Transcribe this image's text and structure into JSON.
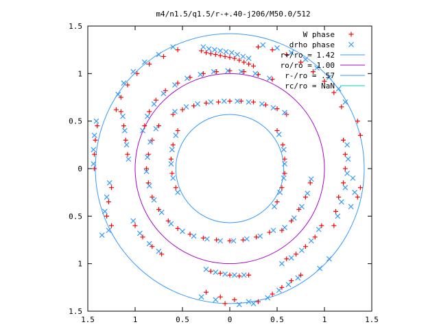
{
  "chart_data": {
    "type": "scatter",
    "title": "m4/n1.5/q1.5/r-+.40-j206/M50.0/512",
    "xlabel": "",
    "ylabel": "",
    "xlim": [
      -1.5,
      1.5
    ],
    "ylim": [
      -1.5,
      1.5
    ],
    "x_ticks": [
      -1.5,
      -1,
      -0.5,
      0,
      0.5,
      1,
      1.5
    ],
    "x_tick_labels": [
      "1.5",
      "1",
      "0.5",
      "0",
      "0.5",
      "1",
      "1.5"
    ],
    "y_ticks": [
      1.5,
      1,
      0.5,
      0,
      -0.5,
      -1,
      -1.5
    ],
    "y_tick_labels": [
      "1.5",
      "1",
      "0.5",
      "0",
      "0.5",
      "1",
      "1.5"
    ],
    "grid": false,
    "legend_position": "top-right",
    "colors": {
      "w_phase": "#ff0000",
      "drho_phase": "#3399ff",
      "r_plus": "#3399ff",
      "r_o": "#aa00cc",
      "r_minus": "#3399ff",
      "r_c": "#00cccc"
    },
    "series": [
      {
        "name": "W phase",
        "marker": "+",
        "points": [
          [
            -0.3,
            1.24
          ],
          [
            -0.25,
            1.22
          ],
          [
            -0.2,
            1.21
          ],
          [
            -0.15,
            1.2
          ],
          [
            -0.1,
            1.19
          ],
          [
            -0.05,
            1.18
          ],
          [
            0.0,
            1.17
          ],
          [
            0.05,
            1.16
          ],
          [
            0.1,
            1.14
          ],
          [
            0.15,
            1.12
          ],
          [
            0.2,
            1.1
          ],
          [
            0.25,
            1.08
          ],
          [
            0.3,
            1.28
          ],
          [
            0.45,
            1.25
          ],
          [
            0.6,
            1.2
          ],
          [
            0.75,
            1.12
          ],
          [
            0.88,
            1.02
          ],
          [
            1.0,
            0.92
          ],
          [
            1.1,
            0.8
          ],
          [
            1.18,
            0.65
          ],
          [
            -0.55,
            1.25
          ],
          [
            -0.7,
            1.18
          ],
          [
            -0.85,
            1.1
          ],
          [
            -0.98,
            1.0
          ],
          [
            -1.08,
            0.88
          ],
          [
            -1.15,
            0.75
          ],
          [
            -0.6,
            0.57
          ],
          [
            -0.5,
            0.62
          ],
          [
            -0.38,
            0.66
          ],
          [
            -0.25,
            0.69
          ],
          [
            -0.12,
            0.7
          ],
          [
            0.0,
            0.71
          ],
          [
            0.12,
            0.71
          ],
          [
            0.25,
            0.7
          ],
          [
            0.38,
            0.67
          ],
          [
            0.5,
            0.63
          ],
          [
            0.6,
            0.57
          ],
          [
            -0.75,
            0.45
          ],
          [
            -0.82,
            0.3
          ],
          [
            -0.86,
            0.15
          ],
          [
            -0.88,
            0.0
          ],
          [
            -0.86,
            -0.15
          ],
          [
            -0.82,
            -0.3
          ],
          [
            -0.75,
            -0.43
          ],
          [
            -0.65,
            -0.55
          ],
          [
            -0.55,
            -0.63
          ],
          [
            -0.42,
            -0.69
          ],
          [
            -0.28,
            -0.73
          ],
          [
            -0.14,
            -0.75
          ],
          [
            0.0,
            -0.76
          ],
          [
            0.14,
            -0.75
          ],
          [
            0.28,
            -0.72
          ],
          [
            0.42,
            -0.67
          ],
          [
            0.5,
            0.4
          ],
          [
            0.56,
            0.25
          ],
          [
            0.58,
            0.1
          ],
          [
            0.58,
            -0.05
          ],
          [
            0.55,
            -0.2
          ],
          [
            0.5,
            -0.35
          ],
          [
            -0.55,
            0.4
          ],
          [
            -0.6,
            0.25
          ],
          [
            -0.62,
            0.1
          ],
          [
            -0.61,
            -0.05
          ],
          [
            -0.57,
            -0.2
          ],
          [
            0.55,
            -0.65
          ],
          [
            0.65,
            -0.55
          ],
          [
            0.73,
            -0.43
          ],
          [
            0.8,
            -0.3
          ],
          [
            0.85,
            -0.15
          ],
          [
            1.2,
            0.3
          ],
          [
            1.22,
            0.15
          ],
          [
            1.22,
            0.0
          ],
          [
            1.2,
            -0.15
          ],
          [
            1.15,
            -0.3
          ],
          [
            1.12,
            -0.45
          ],
          [
            0.6,
            -0.95
          ],
          [
            0.7,
            -0.9
          ],
          [
            0.8,
            -0.82
          ],
          [
            0.9,
            -0.72
          ],
          [
            0.97,
            -0.6
          ],
          [
            0.3,
            -1.4
          ],
          [
            0.45,
            -1.32
          ],
          [
            0.55,
            -1.25
          ],
          [
            0.65,
            -1.18
          ],
          [
            0.75,
            -1.12
          ],
          [
            -0.2,
            -1.08
          ],
          [
            -0.1,
            -1.1
          ],
          [
            0.0,
            -1.12
          ],
          [
            0.1,
            -1.13
          ],
          [
            0.2,
            -1.12
          ],
          [
            -1.0,
            -0.6
          ],
          [
            -0.92,
            -0.72
          ],
          [
            -0.82,
            -0.82
          ],
          [
            -0.72,
            -0.9
          ],
          [
            -1.25,
            -0.2
          ],
          [
            -1.28,
            -0.35
          ],
          [
            -1.3,
            -0.5
          ],
          [
            -1.25,
            -0.6
          ],
          [
            -1.4,
            0.45
          ],
          [
            -1.42,
            0.3
          ],
          [
            -1.43,
            0.15
          ],
          [
            -1.43,
            0.0
          ],
          [
            -1.15,
            0.6
          ],
          [
            -1.12,
            0.45
          ],
          [
            -1.1,
            0.3
          ],
          [
            -1.08,
            0.15
          ],
          [
            1.35,
            0.5
          ],
          [
            1.38,
            0.35
          ],
          [
            1.38,
            -0.2
          ],
          [
            1.35,
            -0.3
          ],
          [
            1.1,
            -0.6
          ],
          [
            -1.2,
            0.62
          ],
          [
            -0.1,
            -1.35
          ],
          [
            -0.25,
            -1.3
          ],
          [
            -0.05,
            -1.42
          ],
          [
            0.05,
            -1.38
          ],
          [
            -0.9,
            0.45
          ],
          [
            -0.85,
            0.6
          ],
          [
            -0.78,
            0.72
          ],
          [
            -0.68,
            0.82
          ],
          [
            -0.55,
            0.9
          ],
          [
            -0.42,
            0.96
          ],
          [
            -0.28,
            1.0
          ],
          [
            -0.14,
            1.02
          ],
          [
            0.0,
            1.03
          ],
          [
            0.15,
            1.02
          ],
          [
            0.3,
            0.99
          ],
          [
            0.45,
            0.94
          ]
        ]
      },
      {
        "name": "drho phase",
        "marker": "x",
        "points": [
          [
            -0.28,
            1.28
          ],
          [
            -0.22,
            1.26
          ],
          [
            -0.16,
            1.25
          ],
          [
            -0.1,
            1.24
          ],
          [
            -0.04,
            1.23
          ],
          [
            0.02,
            1.22
          ],
          [
            0.08,
            1.2
          ],
          [
            0.14,
            1.18
          ],
          [
            0.2,
            1.16
          ],
          [
            0.35,
            1.3
          ],
          [
            0.5,
            1.27
          ],
          [
            0.65,
            1.22
          ],
          [
            0.8,
            1.15
          ],
          [
            0.92,
            1.06
          ],
          [
            1.05,
            0.96
          ],
          [
            1.15,
            0.84
          ],
          [
            1.22,
            0.7
          ],
          [
            -0.6,
            1.28
          ],
          [
            -0.75,
            1.2
          ],
          [
            -0.9,
            1.12
          ],
          [
            -1.02,
            1.02
          ],
          [
            -1.12,
            0.9
          ],
          [
            -1.18,
            0.78
          ],
          [
            -0.58,
            0.6
          ],
          [
            -0.46,
            0.65
          ],
          [
            -0.34,
            0.68
          ],
          [
            -0.2,
            0.7
          ],
          [
            -0.06,
            0.71
          ],
          [
            0.08,
            0.71
          ],
          [
            0.2,
            0.7
          ],
          [
            0.34,
            0.68
          ],
          [
            0.46,
            0.64
          ],
          [
            0.58,
            0.59
          ],
          [
            -0.78,
            0.42
          ],
          [
            -0.84,
            0.28
          ],
          [
            -0.87,
            0.12
          ],
          [
            -0.88,
            -0.03
          ],
          [
            -0.85,
            -0.18
          ],
          [
            -0.8,
            -0.33
          ],
          [
            -0.72,
            -0.46
          ],
          [
            -0.62,
            -0.58
          ],
          [
            -0.5,
            -0.66
          ],
          [
            -0.38,
            -0.71
          ],
          [
            -0.24,
            -0.74
          ],
          [
            -0.1,
            -0.76
          ],
          [
            0.04,
            -0.76
          ],
          [
            0.18,
            -0.74
          ],
          [
            0.32,
            -0.71
          ],
          [
            0.46,
            -0.65
          ],
          [
            0.52,
            0.36
          ],
          [
            0.57,
            0.2
          ],
          [
            0.58,
            0.05
          ],
          [
            0.57,
            -0.1
          ],
          [
            0.53,
            -0.25
          ],
          [
            0.47,
            -0.4
          ],
          [
            -0.57,
            0.35
          ],
          [
            -0.61,
            0.2
          ],
          [
            -0.62,
            0.05
          ],
          [
            -0.6,
            -0.1
          ],
          [
            -0.55,
            -0.25
          ],
          [
            0.58,
            -0.62
          ],
          [
            0.68,
            -0.52
          ],
          [
            0.76,
            -0.4
          ],
          [
            0.82,
            -0.26
          ],
          [
            0.86,
            -0.11
          ],
          [
            1.24,
            0.25
          ],
          [
            1.25,
            0.1
          ],
          [
            1.24,
            -0.05
          ],
          [
            1.22,
            -0.2
          ],
          [
            1.18,
            -0.35
          ],
          [
            1.14,
            -0.5
          ],
          [
            0.55,
            -1.0
          ],
          [
            0.65,
            -0.94
          ],
          [
            0.76,
            -0.86
          ],
          [
            0.86,
            -0.76
          ],
          [
            0.94,
            -0.64
          ],
          [
            0.25,
            -1.42
          ],
          [
            0.4,
            -1.36
          ],
          [
            0.52,
            -1.28
          ],
          [
            0.62,
            -1.22
          ],
          [
            0.72,
            -1.15
          ],
          [
            -0.25,
            -1.06
          ],
          [
            -0.15,
            -1.09
          ],
          [
            -0.05,
            -1.11
          ],
          [
            0.05,
            -1.12
          ],
          [
            0.15,
            -1.12
          ],
          [
            -1.02,
            -0.55
          ],
          [
            -0.95,
            -0.68
          ],
          [
            -0.85,
            -0.79
          ],
          [
            -0.75,
            -0.87
          ],
          [
            -1.27,
            -0.15
          ],
          [
            -1.3,
            -0.3
          ],
          [
            -1.32,
            -0.45
          ],
          [
            -1.28,
            -0.65
          ],
          [
            -1.41,
            0.5
          ],
          [
            -1.43,
            0.35
          ],
          [
            -1.44,
            0.2
          ],
          [
            -1.44,
            0.05
          ],
          [
            -1.13,
            0.55
          ],
          [
            -1.11,
            0.4
          ],
          [
            -1.09,
            0.25
          ],
          [
            -1.07,
            0.1
          ],
          [
            1.3,
            -0.1
          ],
          [
            1.32,
            -0.25
          ],
          [
            1.28,
            -0.4
          ],
          [
            0.95,
            -1.05
          ],
          [
            1.05,
            -0.95
          ],
          [
            -1.35,
            -0.7
          ],
          [
            -0.3,
            -1.35
          ],
          [
            -0.15,
            -1.38
          ],
          [
            0.1,
            -1.43
          ],
          [
            0.2,
            -1.4
          ],
          [
            -0.92,
            0.4
          ],
          [
            -0.87,
            0.55
          ],
          [
            -0.8,
            0.68
          ],
          [
            -0.7,
            0.79
          ],
          [
            -0.58,
            0.88
          ],
          [
            -0.45,
            0.95
          ],
          [
            -0.31,
            0.99
          ],
          [
            -0.17,
            1.02
          ],
          [
            -0.02,
            1.03
          ],
          [
            0.12,
            1.02
          ],
          [
            0.27,
            1.0
          ],
          [
            0.42,
            0.95
          ]
        ]
      },
      {
        "name": "r+/ro = 1.42",
        "type": "circle",
        "radius": 1.42
      },
      {
        "name": "ro/ro = 1.00",
        "type": "circle",
        "radius": 1.0
      },
      {
        "name": "r-/ro = .57",
        "type": "circle",
        "radius": 0.57
      },
      {
        "name": "rc/ro = NaN",
        "type": "circle",
        "radius": null
      }
    ]
  }
}
